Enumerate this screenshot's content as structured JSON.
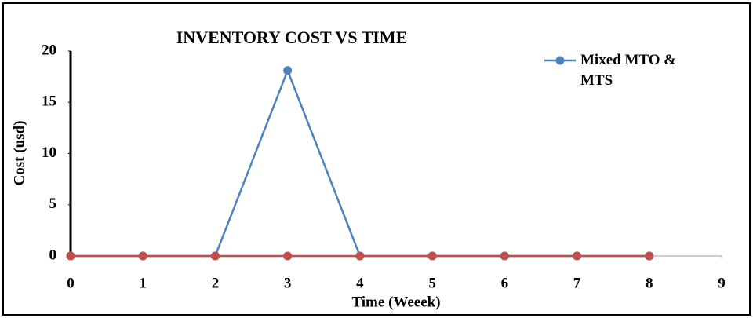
{
  "chart_data": {
    "type": "line",
    "title": "INVENTORY COST VS TIME",
    "x_label": "Time (Weeek)",
    "y_label": "Cost (usd)",
    "x": [
      0,
      1,
      2,
      3,
      4,
      5,
      6,
      7,
      8
    ],
    "series": [
      {
        "name": "Mixed MTO & MTS",
        "color": "#4f81bd",
        "values": [
          0,
          0,
          0,
          18.1,
          0,
          0,
          0,
          0,
          0
        ]
      },
      {
        "color": "#c0504d",
        "values": [
          0,
          0,
          0,
          0,
          0,
          0,
          0,
          0,
          0
        ]
      }
    ],
    "xlim": [
      0,
      9
    ],
    "xticks": [
      0,
      1,
      2,
      3,
      4,
      5,
      6,
      7,
      8,
      9
    ],
    "ylim": [
      0,
      20
    ],
    "yticks": [
      0,
      5,
      10,
      15,
      20
    ],
    "legend": "top-right"
  }
}
